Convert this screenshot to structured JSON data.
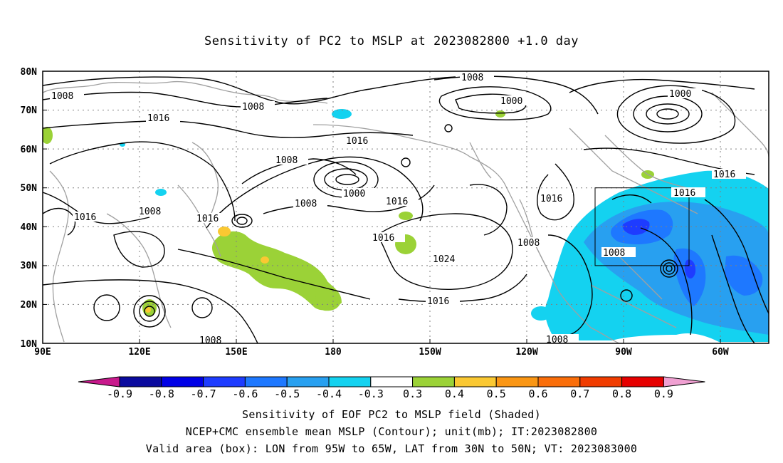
{
  "title": "Sensitivity of PC2 to MSLP at 2023082800 +1.0 day",
  "lat_labels": [
    "80N",
    "70N",
    "60N",
    "50N",
    "40N",
    "30N",
    "20N",
    "10N"
  ],
  "lon_labels": [
    "90E",
    "120E",
    "150E",
    "180",
    "150W",
    "120W",
    "90W",
    "60W"
  ],
  "contour_labels": [
    "1008",
    "1008",
    "1000",
    "1000",
    "1008",
    "1016",
    "1016",
    "1008",
    "1016",
    "1000",
    "1008",
    "1016",
    "1016",
    "1016",
    "1016",
    "1008",
    "1016",
    "1008",
    "1008",
    "1024",
    "1016",
    "1008",
    "1016",
    "1008"
  ],
  "colorbar": {
    "labels": [
      "-0.9",
      "-0.8",
      "-0.7",
      "-0.6",
      "-0.5",
      "-0.4",
      "-0.3",
      "0.3",
      "0.4",
      "0.5",
      "0.6",
      "0.7",
      "0.8",
      "0.9"
    ],
    "colors": [
      "#0a0a9e",
      "#0000e6",
      "#1e3cff",
      "#1e78ff",
      "#28a0f0",
      "#14d2f0",
      "#ffffff",
      "#9bd237",
      "#fac832",
      "#fa9614",
      "#fa6e0a",
      "#f03c00",
      "#e60000"
    ],
    "low_end_color": "#c8198c",
    "high_end_color": "#f0a0d2"
  },
  "captions": [
    "Sensitivity of EOF PC2 to MSLP field (Shaded)",
    "NCEP+CMC ensemble mean MSLP (Contour); unit(mb); IT:2023082800",
    "Valid area (box): LON from 95W to 65W, LAT from 30N to 50N; VT: 2023083000"
  ],
  "valid_box": {
    "lon_west": "95W",
    "lon_east": "65W",
    "lat_south": "30N",
    "lat_north": "50N"
  }
}
